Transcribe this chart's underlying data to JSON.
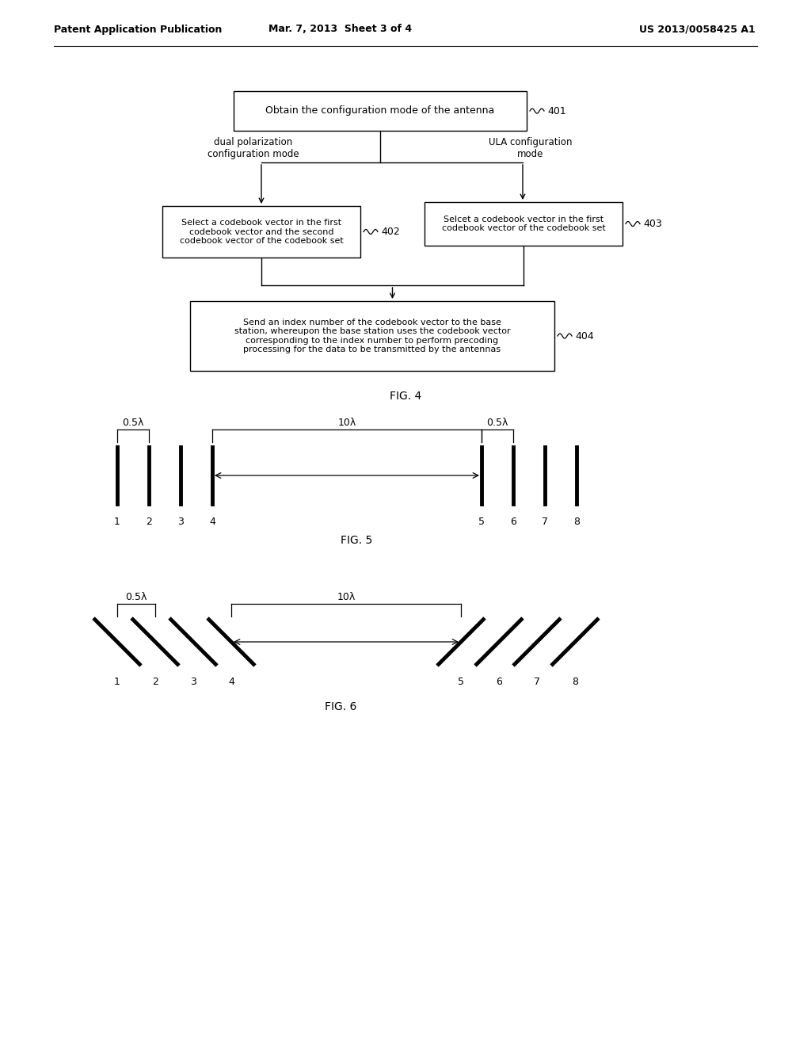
{
  "bg_color": "#ffffff",
  "header_left": "Patent Application Publication",
  "header_mid": "Mar. 7, 2013  Sheet 3 of 4",
  "header_right": "US 2013/0058425 A1",
  "fig4_label": "FIG. 4",
  "fig5_label": "FIG. 5",
  "fig6_label": "FIG. 6",
  "box401_text": "Obtain the configuration mode of the antenna",
  "box402_text": "Select a codebook vector in the first\ncodebook vector and the second\ncodebook vector of the codebook set",
  "box403_text": "Selcet a codebook vector in the first\ncodebook vector of the codebook set",
  "box404_text": "Send an index number of the codebook vector to the base\nstation, whereupon the base station uses the codebook vector\ncorresponding to the index number to perform precoding\nprocessing for the data to be transmitted by the antennas",
  "label401": "401",
  "label402": "402",
  "label403": "403",
  "label404": "404",
  "branch_left": "dual polarization\nconfiguration mode",
  "branch_right": "ULA configuration\nmode",
  "fig5_lambda1": "0.5λ",
  "fig5_lambda2": "10λ",
  "fig5_lambda3": "0.5λ",
  "fig5_numbers": [
    "1",
    "2",
    "3",
    "4",
    "5",
    "6",
    "7",
    "8"
  ],
  "fig6_lambda1": "0.5λ",
  "fig6_lambda2": "10λ",
  "fig6_numbers": [
    "1",
    "2",
    "3",
    "4",
    "5",
    "6",
    "7",
    "8"
  ]
}
